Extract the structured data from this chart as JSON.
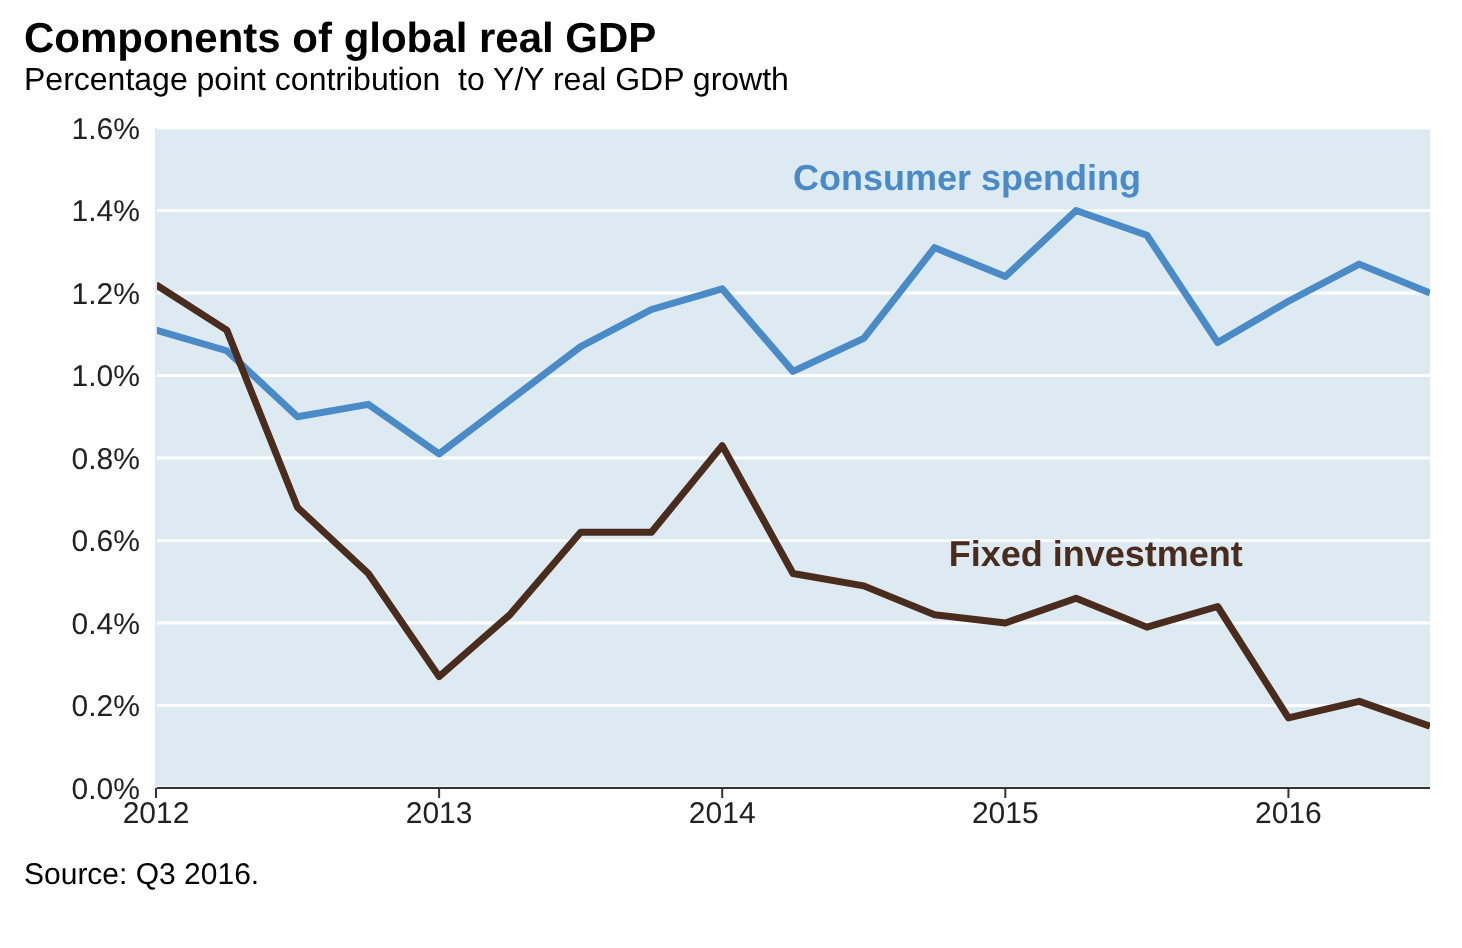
{
  "chart_data": {
    "type": "line",
    "title": "Components of global real GDP",
    "subtitle": "Percentage point contribution  to Y/Y real GDP growth",
    "annotations": [
      "Source: Q3 2016."
    ],
    "x": [
      2012,
      2012.25,
      2012.5,
      2012.75,
      2013,
      2013.25,
      2013.5,
      2013.75,
      2014,
      2014.25,
      2014.5,
      2014.75,
      2015,
      2015.25,
      2015.5,
      2015.75,
      2016,
      2016.25,
      2016.5
    ],
    "series": [
      {
        "name": "Consumer spending",
        "color": "#4a8ac6",
        "values": [
          1.11,
          1.06,
          0.9,
          0.93,
          0.81,
          0.94,
          1.07,
          1.16,
          1.21,
          1.01,
          1.09,
          1.31,
          1.24,
          1.4,
          1.34,
          1.08,
          1.18,
          1.27,
          1.2
        ]
      },
      {
        "name": "Fixed investment",
        "color": "#4a2c1e",
        "values": [
          1.22,
          1.11,
          0.68,
          0.52,
          0.27,
          0.42,
          0.62,
          0.62,
          0.83,
          0.52,
          0.49,
          0.42,
          0.4,
          0.46,
          0.39,
          0.44,
          0.17,
          0.21,
          0.15
        ]
      }
    ],
    "xlim": [
      2012,
      2016.5
    ],
    "xticks": [
      2012,
      2013,
      2014,
      2015,
      2016
    ],
    "ylim": [
      0,
      1.6
    ],
    "yticks": [
      {
        "value": 0,
        "label": "0.0%"
      },
      {
        "value": 0.2,
        "label": "0.2%"
      },
      {
        "value": 0.4,
        "label": "0.4%"
      },
      {
        "value": 0.6,
        "label": "0.6%"
      },
      {
        "value": 0.8,
        "label": "0.8%"
      },
      {
        "value": 1,
        "label": "1.0%"
      },
      {
        "value": 1.2,
        "label": "1.2%"
      },
      {
        "value": 1.4,
        "label": "1.4%"
      },
      {
        "value": 1.6,
        "label": "1.6%"
      }
    ],
    "grid": "y",
    "marker": "none",
    "line_style": "solid"
  }
}
